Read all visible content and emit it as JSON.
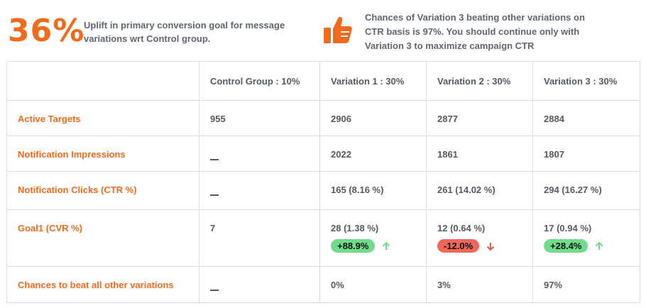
{
  "summary": {
    "uplift_value": "36%",
    "uplift_text": "Uplift in primary conversion goal for message variations wrt Control group.",
    "chance_text": "Chances of Variation 3 beating other variations on CTR basis is 97%. You should continue only with Variation 3 to maximize campaign CTR",
    "icon": "thumbs-up-icon",
    "accent_color": "#f26b1d"
  },
  "table": {
    "headers": [
      "Control Group : 10%",
      "Variation 1 : 30%",
      "Variation 2 : 30%",
      "Variation 3 : 30%"
    ],
    "rows": [
      {
        "label": "Active Targets",
        "values": [
          "955",
          "2906",
          "2877",
          "2884"
        ]
      },
      {
        "label": "Notification Impressions",
        "values": [
          "—",
          "2022",
          "1861",
          "1807"
        ]
      },
      {
        "label": "Notification Clicks (CTR %)",
        "values": [
          "—",
          "165 (8.16 %)",
          "261 (14.02 %)",
          "294 (16.27 %)"
        ]
      },
      {
        "label": "Goal1 (CVR %)",
        "values": [
          "7",
          "28 (1.38 %)",
          "12 (0.64 %)",
          "17 (0.94 %)"
        ],
        "badges": [
          "",
          "+88.9%",
          "-12.0%",
          "+28.4%"
        ],
        "badge_direction": [
          "",
          "up",
          "down",
          "up"
        ]
      },
      {
        "label": "Chances to beat all other variations",
        "values": [
          "—",
          "0%",
          "3%",
          "97%"
        ]
      }
    ]
  },
  "colors": {
    "positive": "#6fdc8c",
    "negative": "#f0685a",
    "up_arrow": "#6fdc8c",
    "down_arrow": "#e05a47"
  }
}
